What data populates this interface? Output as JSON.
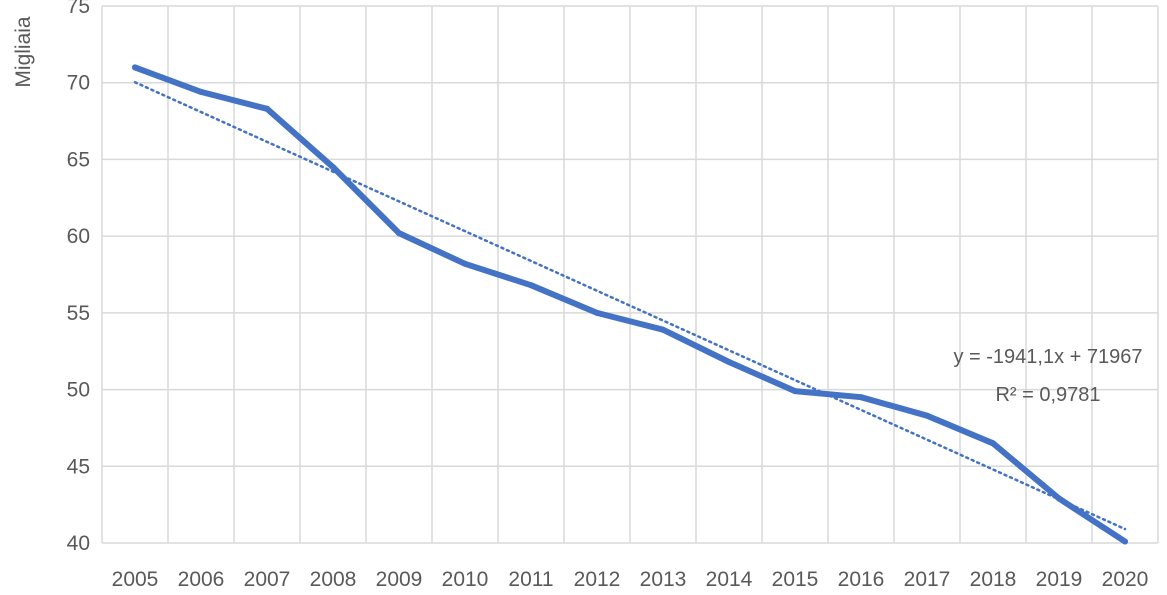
{
  "chart_data": {
    "type": "line",
    "title": "",
    "xlabel": "",
    "ylabel": "Migliaia",
    "x": [
      "2005",
      "2006",
      "2007",
      "2008",
      "2009",
      "2010",
      "2011",
      "2012",
      "2013",
      "2014",
      "2015",
      "2016",
      "2017",
      "2018",
      "2019",
      "2020"
    ],
    "y_ticks": [
      "40",
      "45",
      "50",
      "55",
      "60",
      "65",
      "70",
      "75"
    ],
    "ylim": [
      40,
      75
    ],
    "grid": true,
    "legend": "none",
    "series": [
      {
        "values": [
          71.0,
          69.4,
          68.3,
          64.5,
          60.2,
          58.2,
          56.8,
          55.0,
          53.9,
          51.8,
          49.9,
          49.5,
          48.3,
          46.5,
          42.9,
          40.1
        ],
        "color": "#4472c4"
      }
    ],
    "trendline": {
      "type": "linear",
      "slope": -1941.1,
      "intercept": 71967,
      "units_scale": 1000,
      "start_value": 70.03,
      "end_value": 40.91,
      "color": "#4472c4",
      "equation_label": "y = -1941,1x + 71967",
      "r2_label": "R² = 0,9781"
    }
  }
}
